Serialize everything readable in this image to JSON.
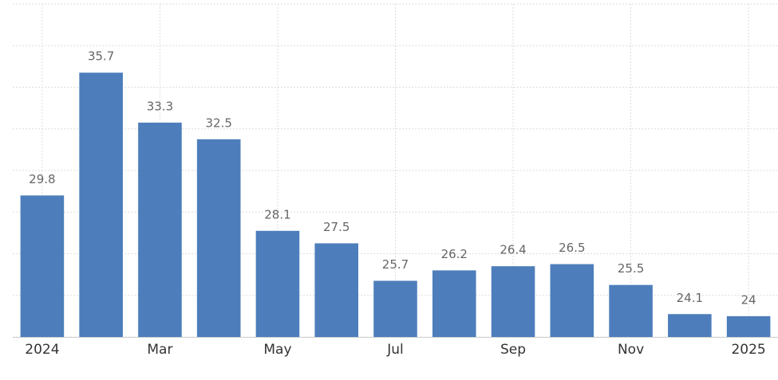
{
  "chart_data": {
    "type": "bar",
    "categories": [
      "2024",
      null,
      "Mar",
      null,
      "May",
      null,
      "Jul",
      null,
      "Sep",
      null,
      "Nov",
      null,
      "2025"
    ],
    "values": [
      29.8,
      35.7,
      33.3,
      32.5,
      28.1,
      27.5,
      25.7,
      26.2,
      26.4,
      26.5,
      25.5,
      24.1,
      24
    ],
    "color": "#4d7ebb",
    "ylim": [
      23,
      39
    ],
    "yticks": [
      23,
      25,
      27,
      29,
      31,
      33,
      35,
      37,
      39
    ],
    "grid": true
  }
}
